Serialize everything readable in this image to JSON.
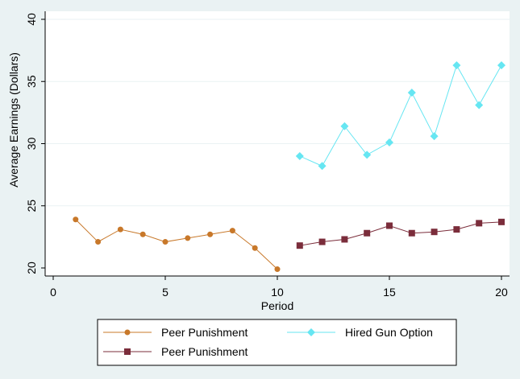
{
  "chart_data": {
    "type": "line",
    "title": "",
    "xlabel": "Period",
    "ylabel": "Average Earnings (Dollars)",
    "xlim": [
      0,
      20
    ],
    "ylim": [
      20,
      40
    ],
    "x_ticks": [
      0,
      5,
      10,
      15,
      20
    ],
    "y_ticks": [
      20,
      25,
      30,
      35,
      40
    ],
    "grid": true,
    "legend_position": "bottom",
    "series": [
      {
        "name": "Peer Punishment",
        "color": "#c8782a",
        "marker": "circle",
        "x": [
          1,
          2,
          3,
          4,
          5,
          6,
          7,
          8,
          9,
          10
        ],
        "y": [
          23.9,
          22.1,
          23.1,
          22.7,
          22.1,
          22.4,
          22.7,
          23.0,
          21.6,
          19.9
        ]
      },
      {
        "name": "Hired Gun Option",
        "color": "#66e6f2",
        "marker": "diamond",
        "x": [
          11,
          12,
          13,
          14,
          15,
          16,
          17,
          18,
          19,
          20
        ],
        "y": [
          29.0,
          28.2,
          31.4,
          29.1,
          30.1,
          34.1,
          30.6,
          36.3,
          33.1,
          36.3
        ]
      },
      {
        "name": "Peer Punishment",
        "color": "#7b2d3b",
        "marker": "square",
        "x": [
          11,
          12,
          13,
          14,
          15,
          16,
          17,
          18,
          19,
          20
        ],
        "y": [
          21.8,
          22.1,
          22.3,
          22.8,
          23.4,
          22.8,
          22.9,
          23.1,
          23.6,
          23.7
        ]
      }
    ]
  }
}
